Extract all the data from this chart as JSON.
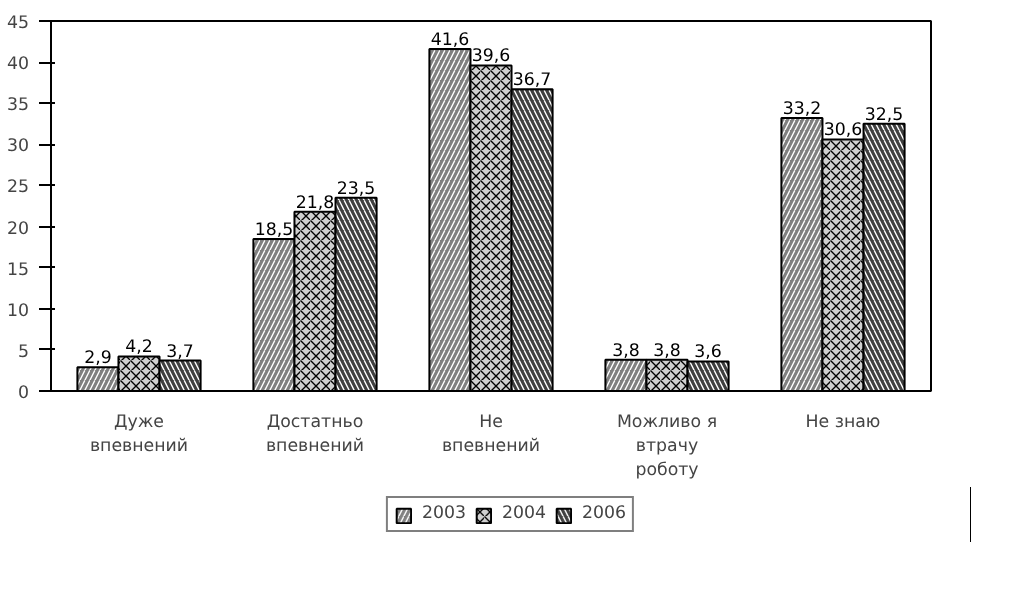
{
  "chart_data": {
    "type": "bar",
    "categories": [
      "Дуже впевнений",
      "Достатньо впевнений",
      "Не впевнений",
      "Можливо я втрачу роботу",
      "Не знаю"
    ],
    "series": [
      {
        "name": "2003",
        "color": "#808080",
        "values": [
          2.9,
          18.5,
          41.6,
          3.8,
          33.2
        ],
        "value_labels": [
          "2,9",
          "18,5",
          "41,6",
          "3,8",
          "33,2"
        ]
      },
      {
        "name": "2004",
        "color": "#d0d0d0",
        "values": [
          4.2,
          21.8,
          39.6,
          3.8,
          30.6
        ],
        "value_labels": [
          "4,2",
          "21,8",
          "39,6",
          "3,8",
          "30,6"
        ]
      },
      {
        "name": "2006",
        "color": "#404040",
        "values": [
          3.7,
          23.5,
          36.7,
          3.6,
          32.5
        ],
        "value_labels": [
          "3,7",
          "23,5",
          "36,7",
          "3,6",
          "32,5"
        ]
      }
    ],
    "ylim": [
      0,
      45
    ],
    "yticks": [
      0,
      5,
      10,
      15,
      20,
      25,
      30,
      35,
      40,
      45
    ],
    "grid": false,
    "legend": "bottom"
  }
}
